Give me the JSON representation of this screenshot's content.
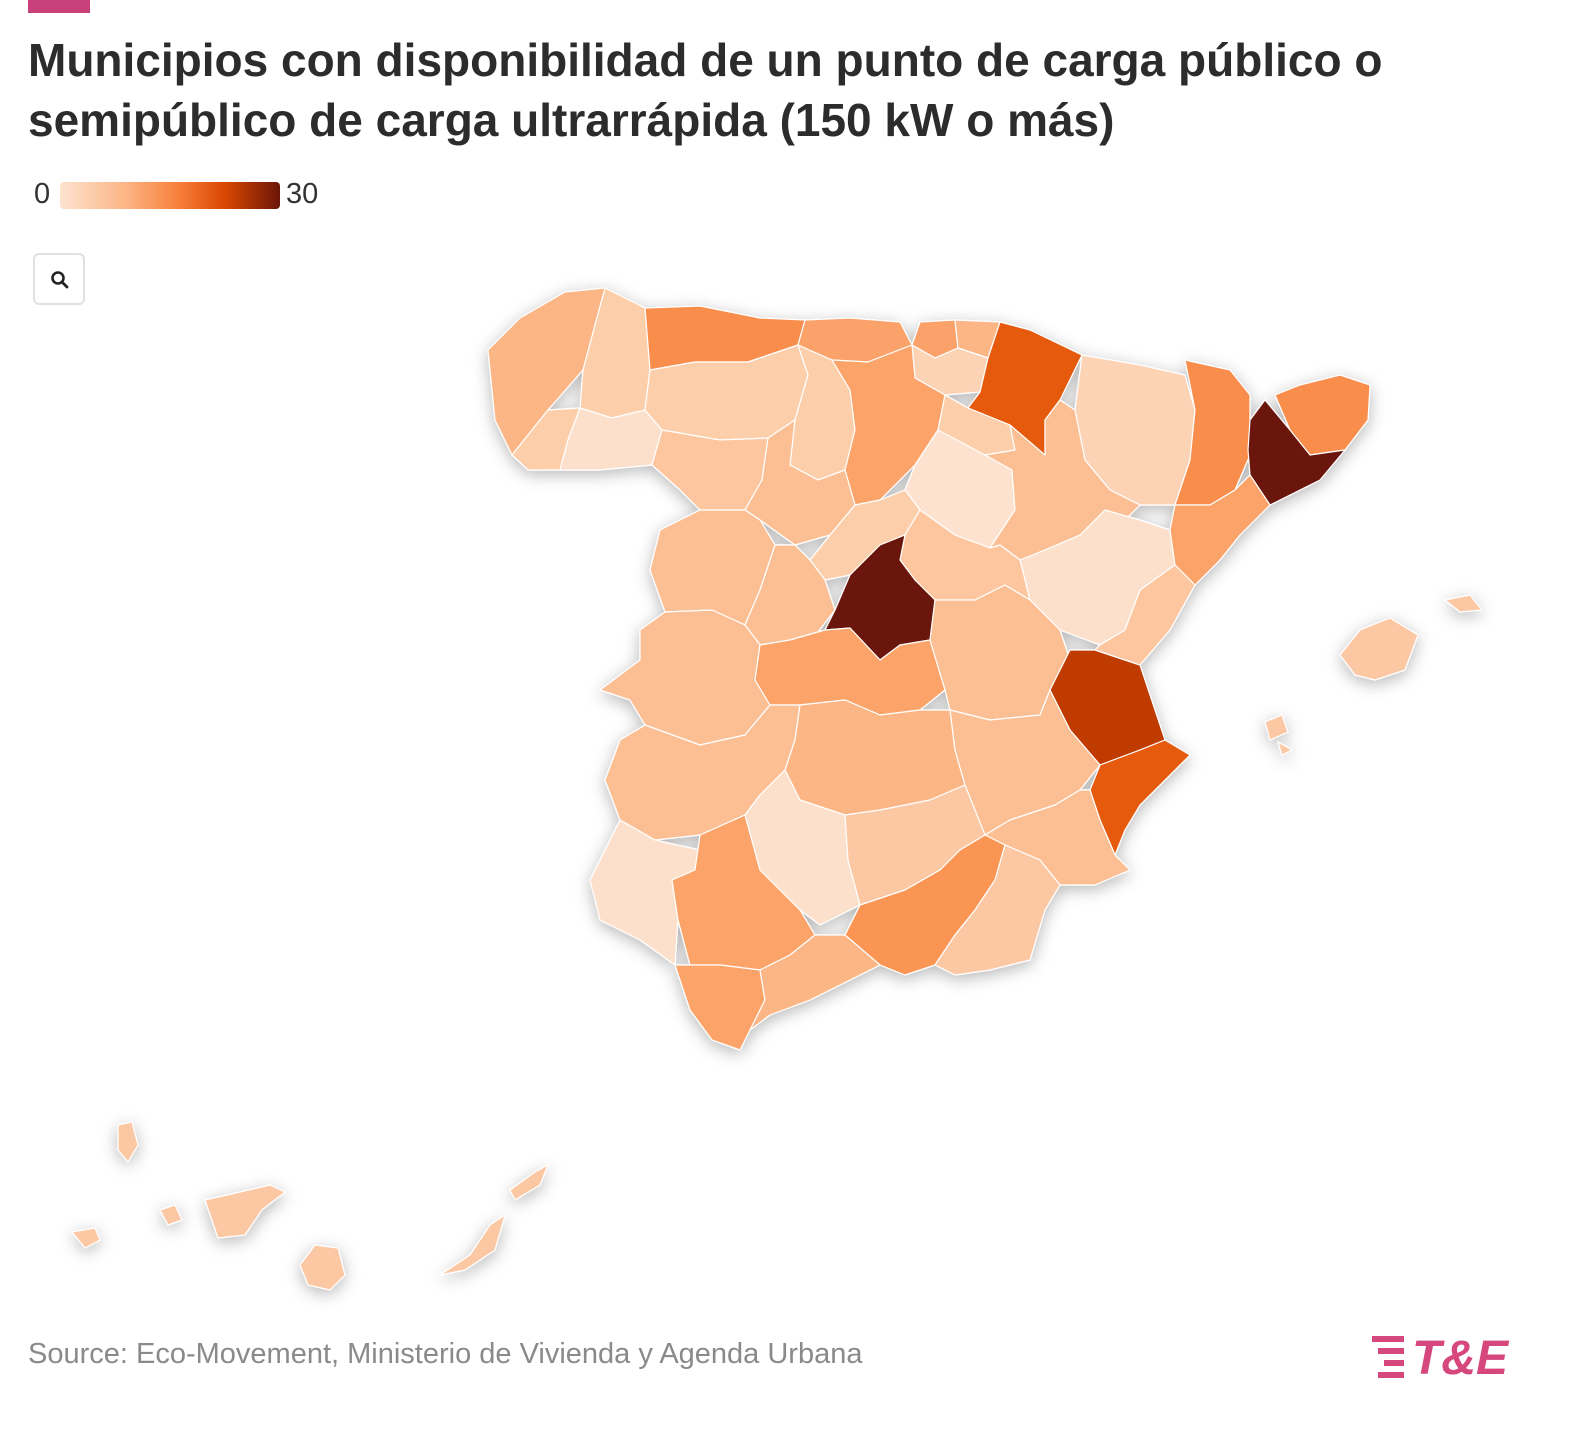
{
  "title": "Municipios con disponibilidad de un punto de carga público o semipúblico de carga ultrarrápida (150 kW o más)",
  "legend": {
    "min": "0",
    "max": "30"
  },
  "zoom_button": {
    "icon": "search-icon"
  },
  "source": "Source: Eco-Movement, Ministerio de Vivienda y Agenda Urbana",
  "logo_text": "T&E",
  "colors": {
    "accent": "#c83f79",
    "scale": [
      "#fde3cf",
      "#fcb585",
      "#f77d38",
      "#d94701",
      "#6b1508"
    ]
  }
}
